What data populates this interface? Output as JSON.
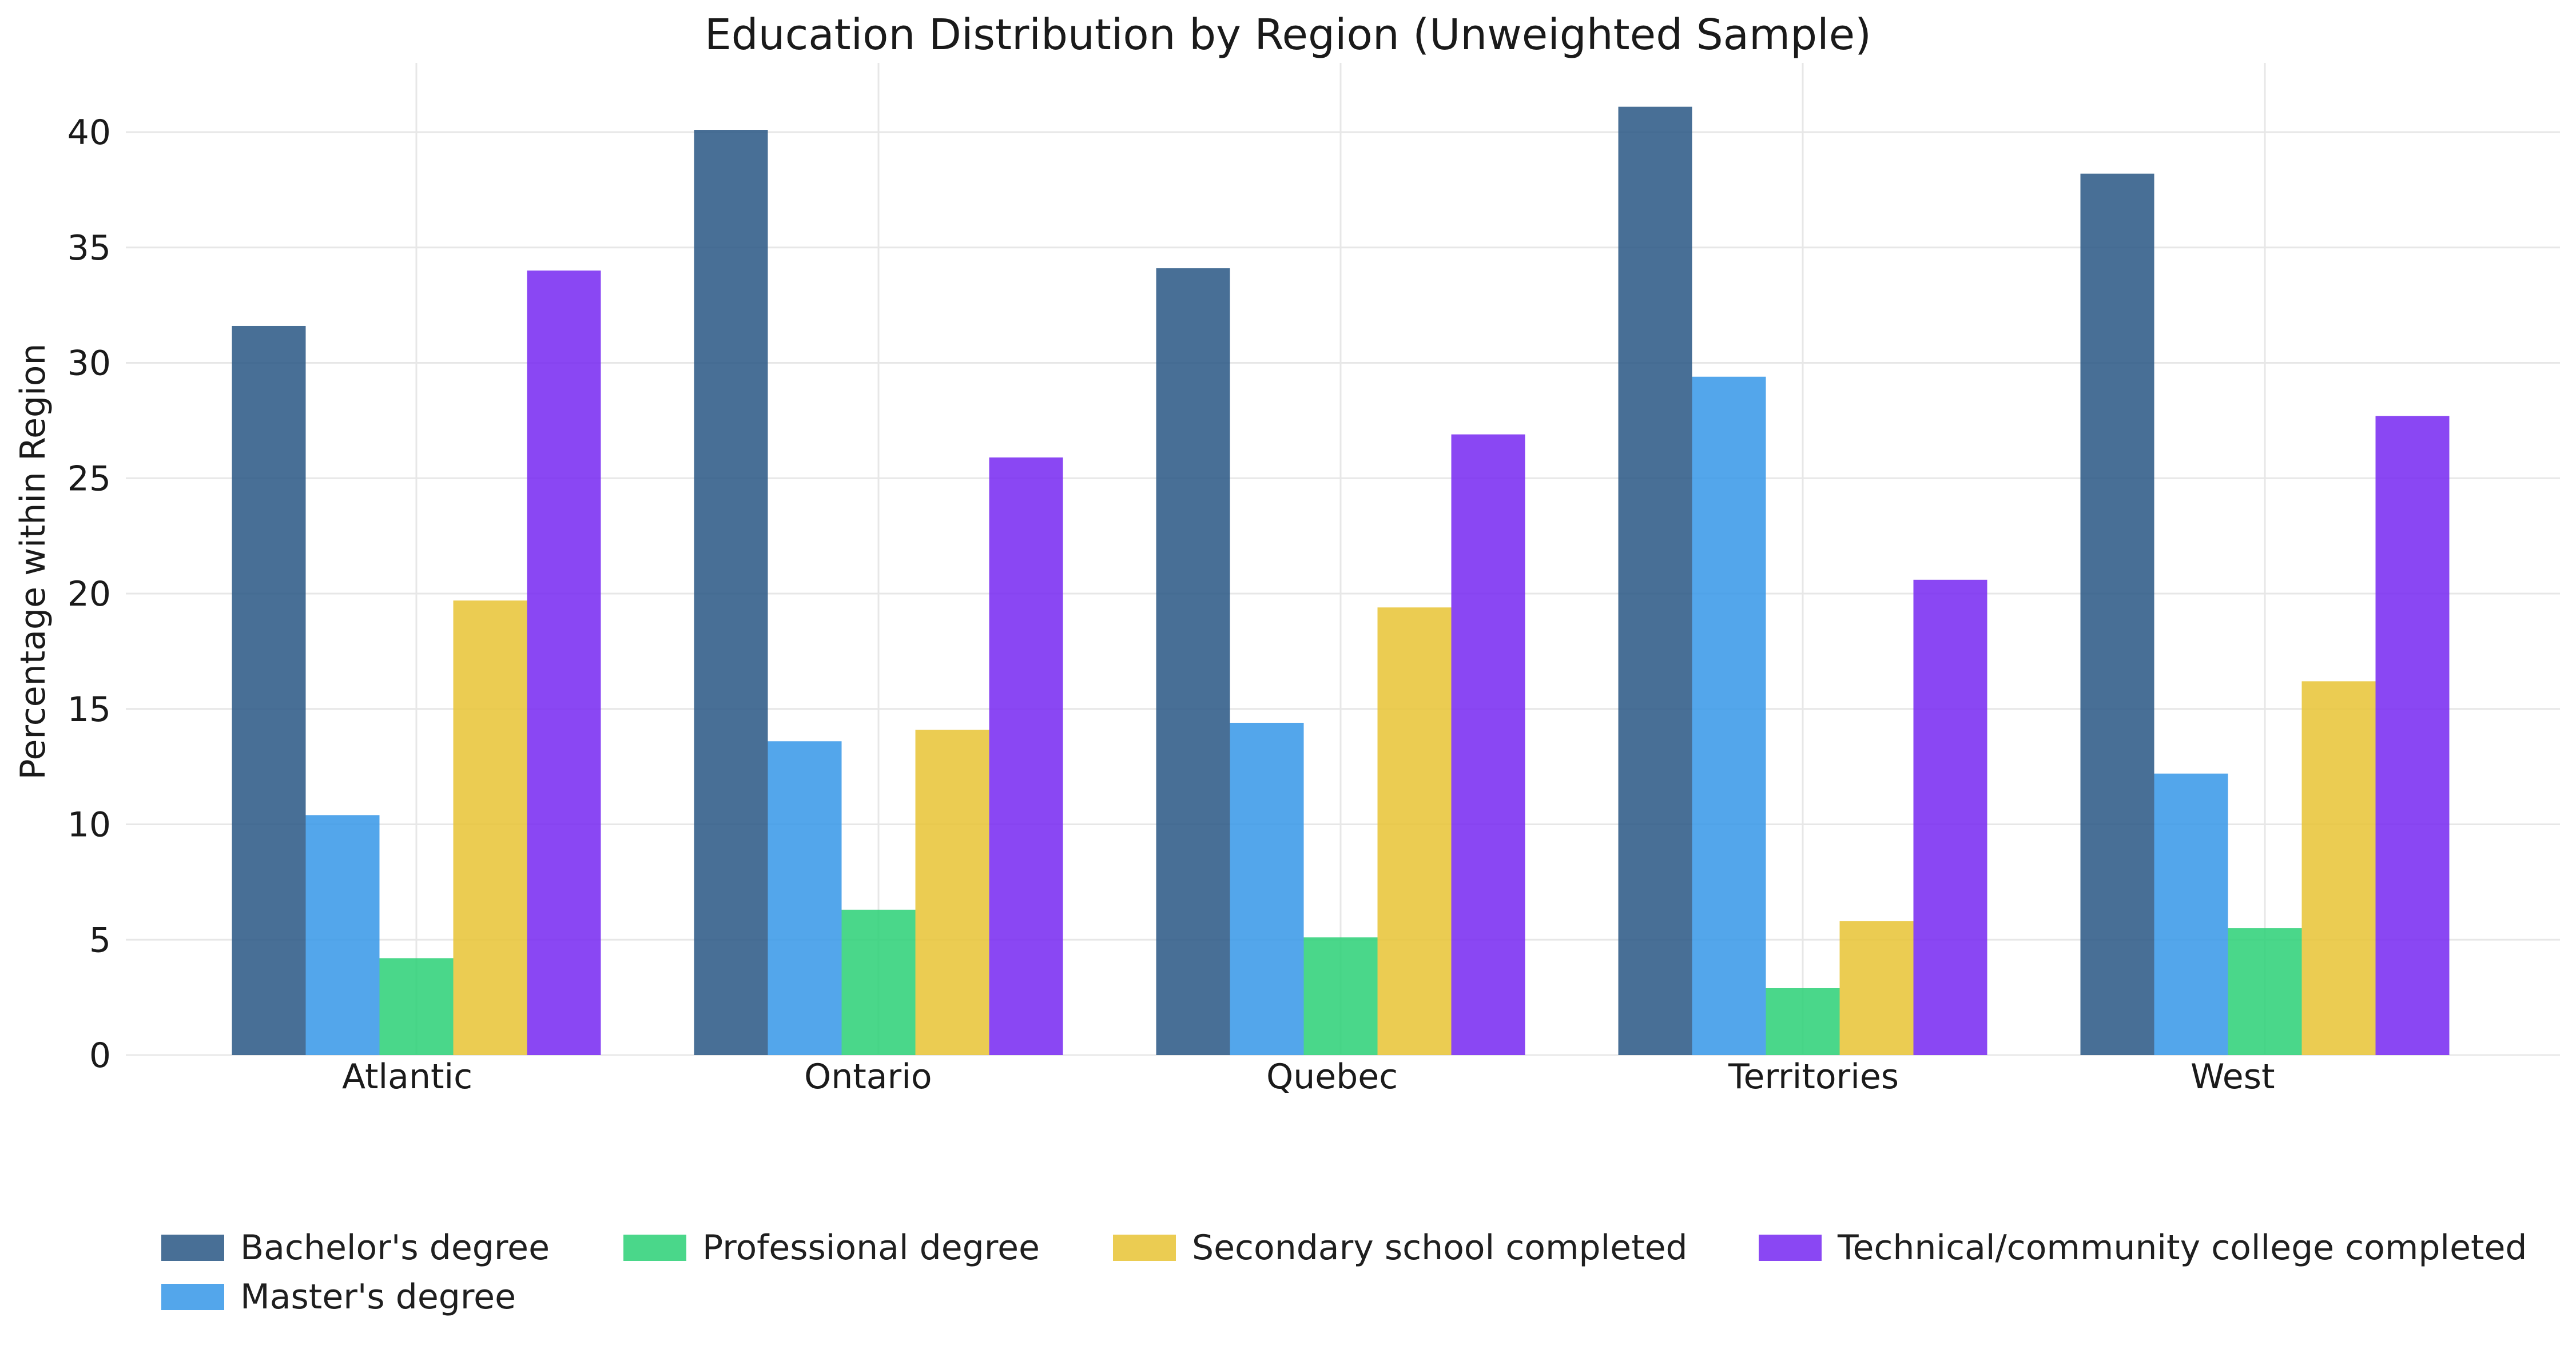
{
  "chart_data": {
    "type": "bar",
    "title": "Education Distribution by Region (Unweighted Sample)",
    "xlabel": "",
    "ylabel": "Percentage within Region",
    "categories": [
      "Atlantic",
      "Ontario",
      "Quebec",
      "Territories",
      "West"
    ],
    "ylim": [
      0,
      43
    ],
    "yticks": [
      0,
      5,
      10,
      15,
      20,
      25,
      30,
      35,
      40
    ],
    "grid": true,
    "legend_position": "bottom",
    "series": [
      {
        "name": "Bachelor's degree",
        "color": "#2f5b88",
        "values": [
          31.6,
          40.1,
          34.1,
          41.1,
          38.2
        ]
      },
      {
        "name": "Master's degree",
        "color": "#3b9ae8",
        "values": [
          10.4,
          13.6,
          14.4,
          29.4,
          12.2
        ]
      },
      {
        "name": "Professional degree",
        "color": "#31d27a",
        "values": [
          4.2,
          6.3,
          5.1,
          2.9,
          5.5
        ]
      },
      {
        "name": "Secondary school completed",
        "color": "#e8c53a",
        "values": [
          19.7,
          14.1,
          19.4,
          5.8,
          16.2
        ]
      },
      {
        "name": "Technical/community college completed",
        "color": "#7a2df1",
        "values": [
          34.0,
          25.9,
          26.9,
          20.6,
          27.7
        ]
      }
    ]
  }
}
